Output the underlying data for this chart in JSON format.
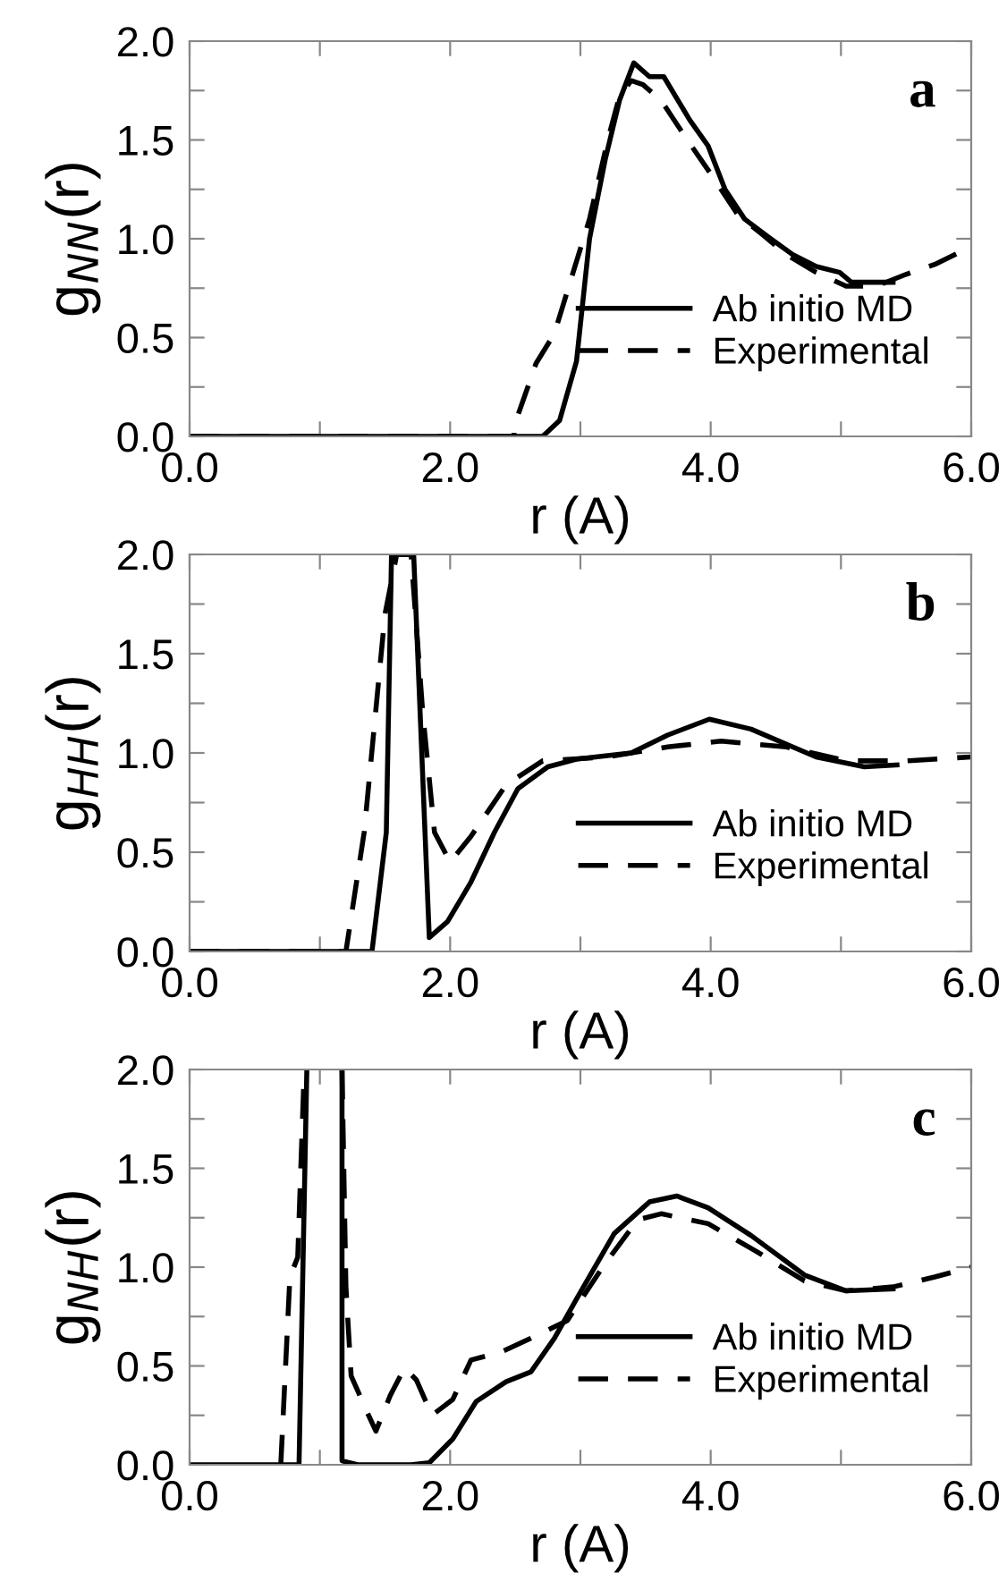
{
  "chart_data": [
    {
      "type": "line",
      "xlabel": "r (A)",
      "ylabel": "g$_{NN}$(r)",
      "annotations": [
        "a"
      ],
      "legend": "bottom right",
      "xlim": [
        0,
        6
      ],
      "ylim": [
        0,
        2
      ],
      "xticks": [
        {
          "value": 0,
          "label": "0.0"
        },
        {
          "value": 1,
          "label": null
        },
        {
          "value": 2,
          "label": "2.0"
        },
        {
          "value": 3,
          "label": null
        },
        {
          "value": 4,
          "label": "4.0"
        },
        {
          "value": 5,
          "label": null
        },
        {
          "value": 6,
          "label": "6.0"
        }
      ],
      "yticks": [
        {
          "value": 0,
          "label": "0.0"
        },
        {
          "value": 0.25,
          "label": null
        },
        {
          "value": 0.5,
          "label": "0.5"
        },
        {
          "value": 0.75,
          "label": null
        },
        {
          "value": 1,
          "label": "1.0"
        },
        {
          "value": 1.25,
          "label": null
        },
        {
          "value": 1.5,
          "label": "1.5"
        },
        {
          "value": 1.75,
          "label": null
        },
        {
          "value": 2,
          "label": "2.0"
        }
      ],
      "series": [
        {
          "name": "Ab initio MD",
          "color": "#000000",
          "line_style": "solid",
          "x": [
            0,
            2.71,
            2.84,
            2.97,
            3.07,
            3.19,
            3.3,
            3.41,
            3.53,
            3.64,
            3.84,
            3.98,
            4.11,
            4.26,
            4.44,
            4.63,
            4.81,
            4.99,
            5.08,
            5.4
          ],
          "values": [
            0,
            0,
            0.08,
            0.38,
            1.0,
            1.4,
            1.7,
            1.89,
            1.82,
            1.82,
            1.6,
            1.47,
            1.25,
            1.1,
            1.01,
            0.92,
            0.86,
            0.83,
            0.78,
            0.78
          ]
        },
        {
          "name": "Experimental",
          "color": "#000000",
          "line_style": "dashed",
          "x": [
            0,
            2.49,
            2.49,
            2.66,
            2.8,
            2.93,
            3.07,
            3.21,
            3.3,
            3.39,
            3.48,
            3.62,
            3.8,
            4.03,
            4.21,
            4.4,
            4.58,
            4.81,
            5.04,
            5.27,
            5.5,
            5.72,
            6.0
          ],
          "values": [
            0,
            0,
            0.05,
            0.37,
            0.52,
            0.8,
            1.1,
            1.5,
            1.72,
            1.8,
            1.78,
            1.7,
            1.52,
            1.3,
            1.12,
            1.02,
            0.92,
            0.83,
            0.76,
            0.76,
            0.82,
            0.87,
            0.96
          ]
        }
      ]
    },
    {
      "type": "line",
      "xlabel": "r (A)",
      "ylabel": "g$_{HH}$(r)",
      "annotations": [
        "b"
      ],
      "legend": "bottom right",
      "xlim": [
        0,
        6
      ],
      "ylim": [
        0,
        2
      ],
      "xticks": [
        {
          "value": 0,
          "label": "0.0"
        },
        {
          "value": 1,
          "label": null
        },
        {
          "value": 2,
          "label": "2.0"
        },
        {
          "value": 3,
          "label": null
        },
        {
          "value": 4,
          "label": "4.0"
        },
        {
          "value": 5,
          "label": null
        },
        {
          "value": 6,
          "label": "6.0"
        }
      ],
      "yticks": [
        {
          "value": 0,
          "label": "0.0"
        },
        {
          "value": 0.25,
          "label": null
        },
        {
          "value": 0.5,
          "label": "0.5"
        },
        {
          "value": 0.75,
          "label": null
        },
        {
          "value": 1,
          "label": "1.0"
        },
        {
          "value": 1.25,
          "label": null
        },
        {
          "value": 1.5,
          "label": "1.5"
        },
        {
          "value": 1.75,
          "label": null
        },
        {
          "value": 2,
          "label": "2.0"
        }
      ],
      "series": [
        {
          "name": "Ab initio MD",
          "color": "#000000",
          "line_style": "solid",
          "x": [
            0,
            1.4,
            1.51,
            1.55,
            1.72,
            1.84,
            1.98,
            2.16,
            2.34,
            2.52,
            2.75,
            2.98,
            3.39,
            3.67,
            3.99,
            4.31,
            4.81,
            5.18,
            5.43
          ],
          "values": [
            0,
            0,
            0.6,
            2.0,
            2.0,
            0.07,
            0.15,
            0.35,
            0.6,
            0.82,
            0.93,
            0.97,
            1.0,
            1.09,
            1.17,
            1.12,
            0.98,
            0.93,
            0.94
          ]
        },
        {
          "name": "Experimental",
          "color": "#000000",
          "line_style": "dashed",
          "x": [
            0,
            1.2,
            1.34,
            1.5,
            1.59,
            1.7,
            1.79,
            1.88,
            2.0,
            2.16,
            2.43,
            2.71,
            3.21,
            3.67,
            4.08,
            4.58,
            5.04,
            5.5,
            6.0
          ],
          "values": [
            0,
            0,
            0.6,
            1.7,
            2.0,
            2.0,
            1.2,
            0.6,
            0.45,
            0.58,
            0.84,
            0.96,
            0.98,
            1.03,
            1.06,
            1.03,
            0.96,
            0.96,
            0.98
          ]
        }
      ]
    },
    {
      "type": "line",
      "xlabel": "r (A)",
      "ylabel": "g$_{NH}$(r)",
      "annotations": [
        "c"
      ],
      "legend": "bottom right",
      "xlim": [
        0,
        6
      ],
      "ylim": [
        0,
        2
      ],
      "xticks": [
        {
          "value": 0,
          "label": "0.0"
        },
        {
          "value": 1,
          "label": null
        },
        {
          "value": 2,
          "label": "2.0"
        },
        {
          "value": 3,
          "label": null
        },
        {
          "value": 4,
          "label": "4.0"
        },
        {
          "value": 5,
          "label": null
        },
        {
          "value": 6,
          "label": "6.0"
        }
      ],
      "yticks": [
        {
          "value": 0,
          "label": "0.0"
        },
        {
          "value": 0.25,
          "label": null
        },
        {
          "value": 0.5,
          "label": "0.5"
        },
        {
          "value": 0.75,
          "label": null
        },
        {
          "value": 1,
          "label": "1.0"
        },
        {
          "value": 1.25,
          "label": null
        },
        {
          "value": 1.5,
          "label": "1.5"
        },
        {
          "value": 1.75,
          "label": null
        },
        {
          "value": 2,
          "label": "2.0"
        }
      ],
      "series": [
        {
          "name": "Ab initio MD",
          "color": "#000000",
          "line_style": "solid",
          "x": [
            0,
            0.84,
            0.9,
            null,
            1.17,
            1.17,
            1.29,
            1.7,
            1.84,
            2.02,
            2.2,
            2.43,
            2.62,
            2.8,
            2.98,
            3.26,
            3.53,
            3.74,
            3.98,
            4.31,
            4.72,
            5.04,
            5.4
          ],
          "values": [
            0,
            0,
            2.0,
            null,
            2.0,
            0.02,
            0,
            0,
            0.01,
            0.13,
            0.32,
            0.42,
            0.47,
            0.64,
            0.85,
            1.17,
            1.33,
            1.36,
            1.3,
            1.16,
            0.96,
            0.88,
            0.89
          ]
        },
        {
          "name": "Experimental",
          "color": "#000000",
          "line_style": "dashed",
          "x": [
            0.7,
            0.77,
            0.83,
            0.88,
            null,
            1.17,
            1.2,
            1.24,
            1.36,
            1.43,
            1.54,
            1.65,
            1.74,
            1.86,
            2.02,
            2.16,
            2.39,
            2.62,
            2.9,
            3.17,
            3.44,
            3.62,
            3.98,
            4.35,
            4.72,
            5.04,
            5.4,
            5.72,
            6.0
          ],
          "values": [
            0,
            0.95,
            1.05,
            2.0,
            null,
            2.0,
            0.9,
            0.45,
            0.27,
            0.17,
            0.35,
            0.49,
            0.43,
            0.25,
            0.33,
            0.53,
            0.57,
            0.64,
            0.73,
            1.0,
            1.24,
            1.27,
            1.22,
            1.08,
            0.93,
            0.88,
            0.9,
            0.95,
            1.0
          ]
        }
      ]
    }
  ]
}
